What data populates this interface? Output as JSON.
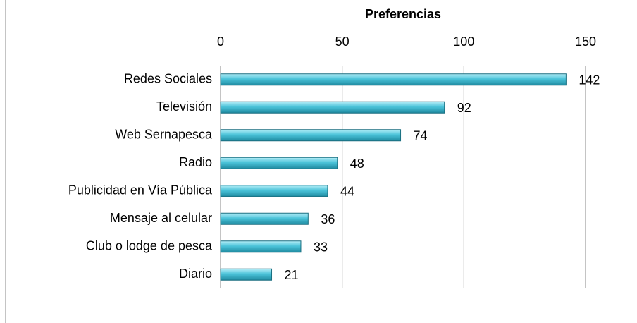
{
  "chart_data": {
    "type": "bar",
    "orientation": "horizontal",
    "title": "Preferencias",
    "categories": [
      "Redes Sociales",
      "Televisión",
      "Web Sernapesca",
      "Radio",
      "Publicidad en Vía Pública",
      "Mensaje al celular",
      "Club o lodge de pesca",
      "Diario"
    ],
    "values": [
      142,
      92,
      74,
      48,
      44,
      36,
      33,
      21
    ],
    "color": "#4bc3d9",
    "xlim": [
      0,
      150
    ],
    "xticks": [
      0,
      50,
      100,
      150
    ],
    "grid": true
  }
}
